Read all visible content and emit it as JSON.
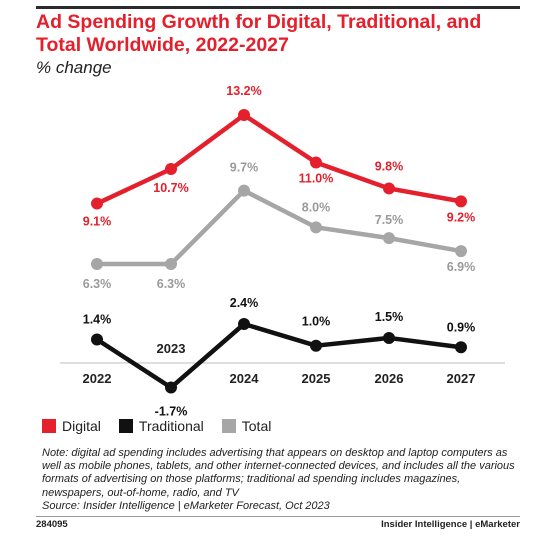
{
  "chart_title": "Ad Spending Growth for Digital, Traditional, and Total Worldwide, 2022-2027",
  "subtitle": "% change",
  "legend": [
    {
      "label": "Digital",
      "color": "#e4202d"
    },
    {
      "label": "Traditional",
      "color": "#111111"
    },
    {
      "label": "Total",
      "color": "#a6a6a6"
    }
  ],
  "note": "Note: digital ad spending includes advertising that appears on desktop and laptop computers as well as mobile phones, tablets, and other internet-connected devices, and includes all the various formats of advertising on those platforms; traditional ad spending includes magazines, newspapers, out-of-home, radio, and TV",
  "source": "Source: Insider Intelligence | eMarketer Forecast, Oct 2023",
  "footer": {
    "id": "284095",
    "brand": "Insider Intelligence | eMarketer"
  },
  "chart_data": {
    "type": "line",
    "x": [
      "2022",
      "2023",
      "2024",
      "2025",
      "2026",
      "2027"
    ],
    "series": [
      {
        "name": "Digital",
        "color": "#e4202d",
        "values": [
          9.1,
          10.7,
          13.2,
          11.0,
          9.8,
          9.2
        ],
        "labels": [
          "9.1%",
          "10.7%",
          "13.2%",
          "11.0%",
          "9.8%",
          "9.2%"
        ]
      },
      {
        "name": "Total",
        "color": "#a6a6a6",
        "values": [
          6.3,
          6.3,
          9.7,
          8.0,
          7.5,
          6.9
        ],
        "labels": [
          "6.3%",
          "6.3%",
          "9.7%",
          "8.0%",
          "7.5%",
          "6.9%"
        ]
      },
      {
        "name": "Traditional",
        "color": "#111111",
        "values": [
          1.4,
          -1.7,
          2.4,
          1.0,
          1.5,
          0.9
        ],
        "labels": [
          "1.4%",
          "-1.7%",
          "2.4%",
          "1.0%",
          "1.5%",
          "0.9%"
        ]
      }
    ],
    "grid": false,
    "legend_position": "bottom-left"
  }
}
